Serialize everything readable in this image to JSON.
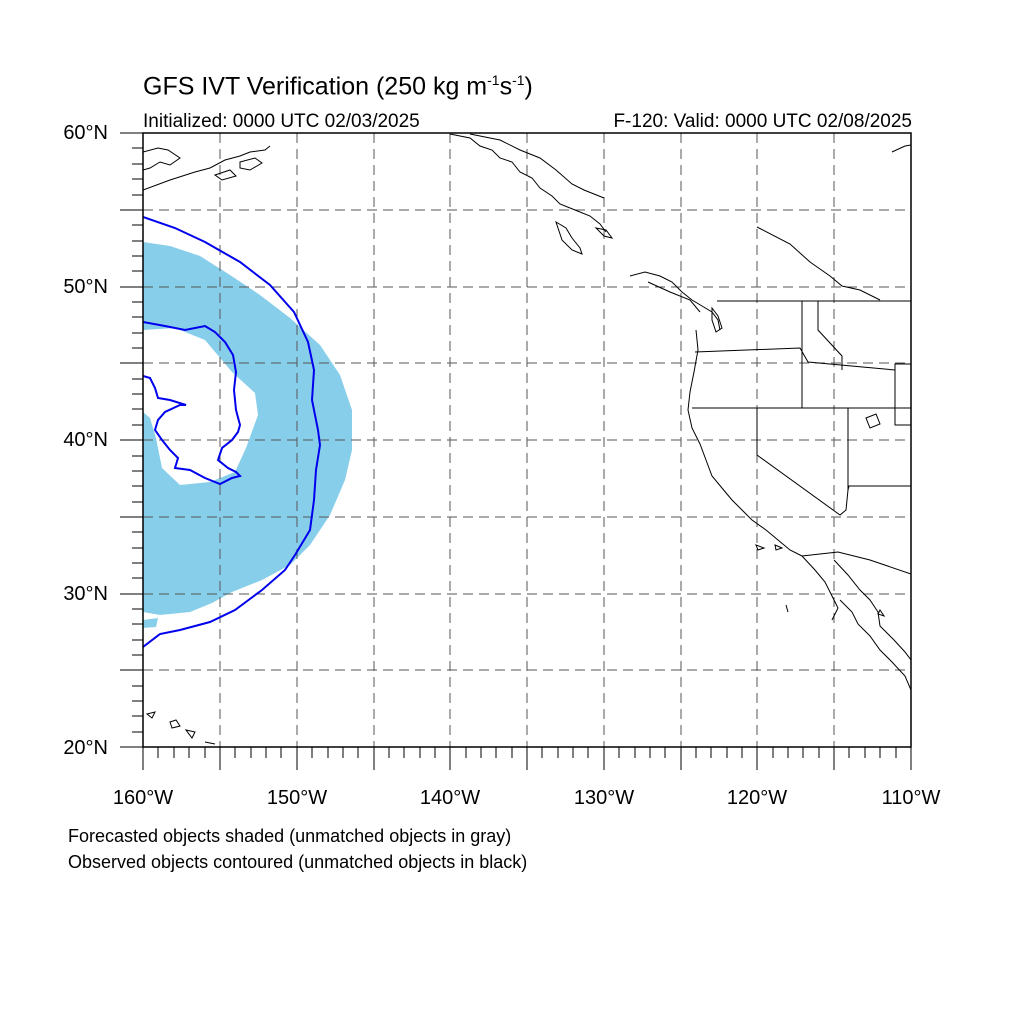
{
  "header": {
    "title_prefix": "GFS IVT Verification (250 kg m",
    "title_exp1": "-1",
    "title_mid": "s",
    "title_exp2": "-1",
    "title_suffix": ")",
    "initialized": "Initialized: 0000 UTC 02/03/2025",
    "valid": "F-120: Valid: 0000 UTC 02/08/2025"
  },
  "axes": {
    "lat_labels": [
      "60°N",
      "50°N",
      "40°N",
      "30°N",
      "20°N"
    ],
    "lon_labels": [
      "160°W",
      "150°W",
      "140°W",
      "130°W",
      "120°W",
      "110°W"
    ],
    "lat_range": [
      20,
      60
    ],
    "lon_range": [
      -160,
      -110
    ]
  },
  "legend": {
    "line1": "Forecasted objects shaded (unmatched objects in gray)",
    "line2": "Observed objects contoured (unmatched objects in black)"
  },
  "colors": {
    "forecast_shade": "#87ceea",
    "observed_contour": "#0000ee"
  }
}
